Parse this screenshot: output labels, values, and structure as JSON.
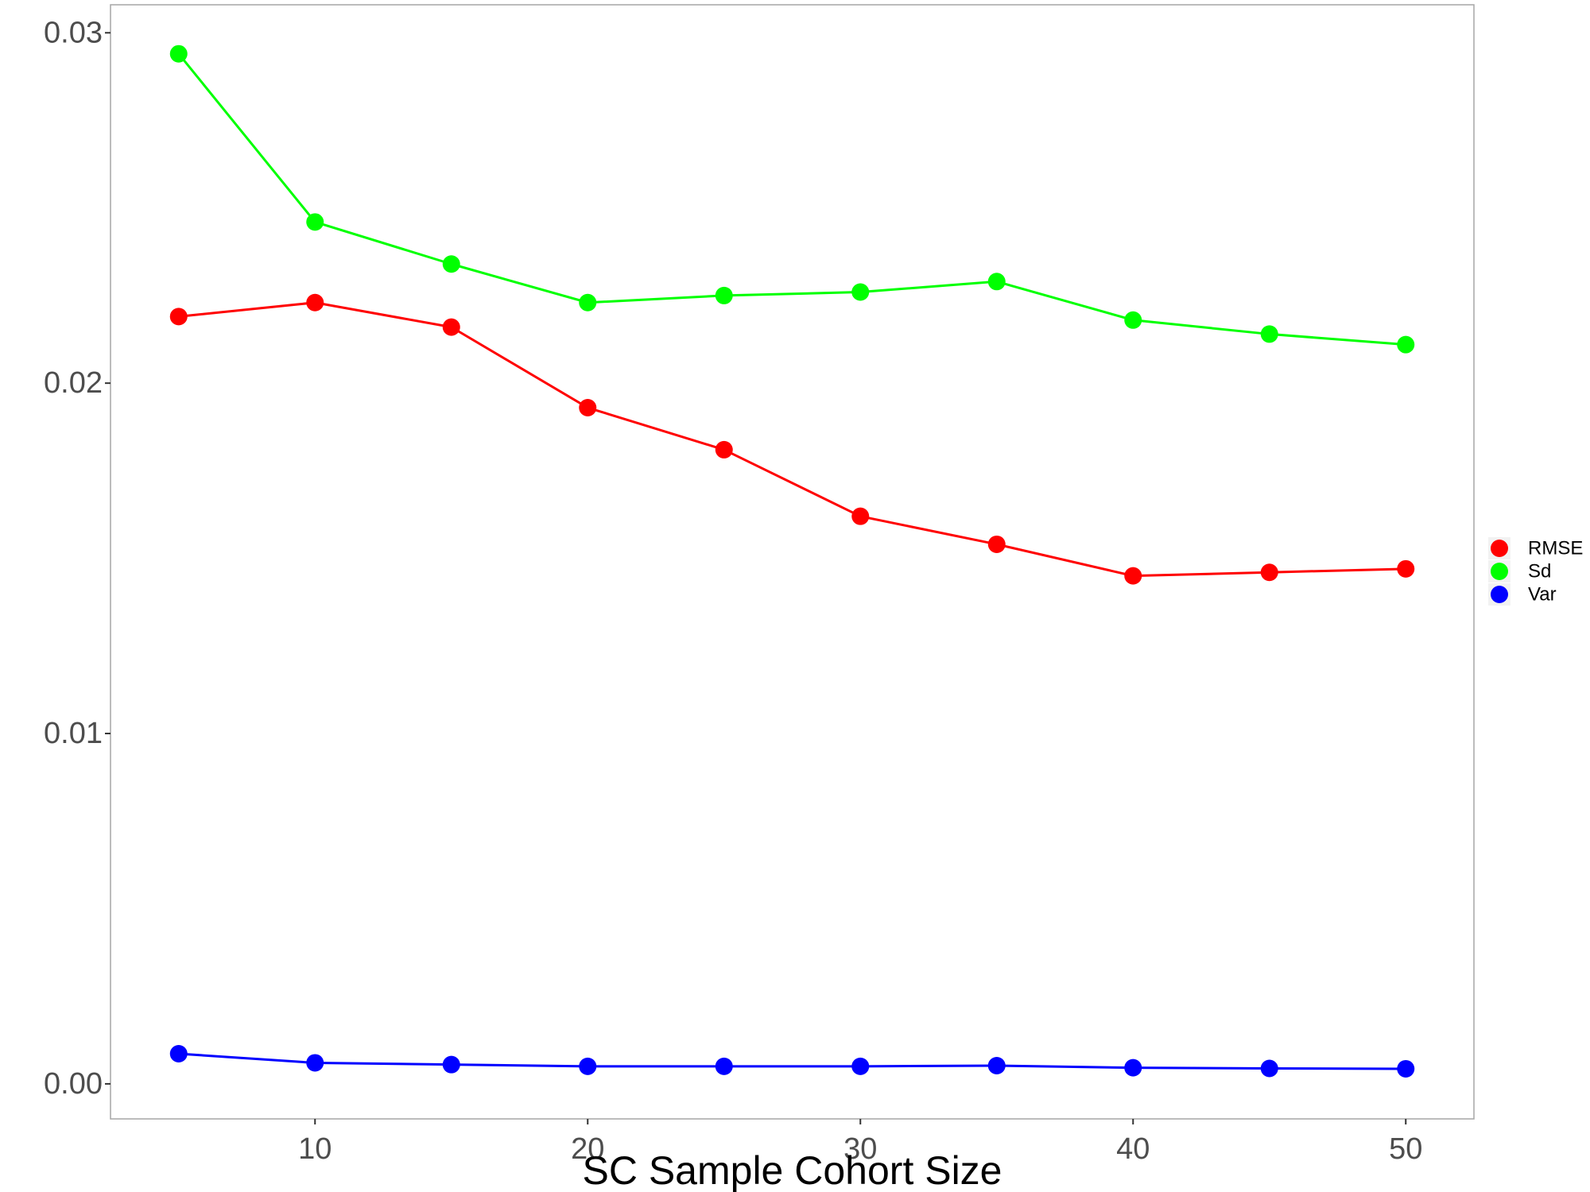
{
  "chart_data": {
    "type": "line",
    "title": "",
    "xlabel": "SC Sample Cohort Size",
    "ylabel": "",
    "x": [
      5,
      10,
      15,
      20,
      25,
      30,
      35,
      40,
      45,
      50
    ],
    "x_ticks": [
      10,
      20,
      30,
      40,
      50
    ],
    "x_tick_labels": [
      "10",
      "20",
      "30",
      "40",
      "50"
    ],
    "y_ticks": [
      0,
      0.01,
      0.02,
      0.03
    ],
    "y_tick_labels": [
      "0.00",
      "0.01",
      "0.02",
      "0.03"
    ],
    "xlim": [
      2.5,
      52.5
    ],
    "ylim": [
      -0.001,
      0.0308
    ],
    "grid": false,
    "legend_position": "right",
    "series": [
      {
        "name": "RMSE",
        "color": "#ff0000",
        "values": [
          0.0219,
          0.0223,
          0.0216,
          0.0193,
          0.0181,
          0.0162,
          0.0154,
          0.0145,
          0.0146,
          0.0147
        ]
      },
      {
        "name": "Sd",
        "color": "#00ff00",
        "values": [
          0.0294,
          0.0246,
          0.0234,
          0.0223,
          0.0225,
          0.0226,
          0.0229,
          0.0218,
          0.0214,
          0.0211
        ]
      },
      {
        "name": "Var",
        "color": "#0000ff",
        "values": [
          0.00086,
          0.0006,
          0.00055,
          0.0005,
          0.0005,
          0.0005,
          0.00052,
          0.00046,
          0.00044,
          0.00043
        ]
      }
    ]
  }
}
